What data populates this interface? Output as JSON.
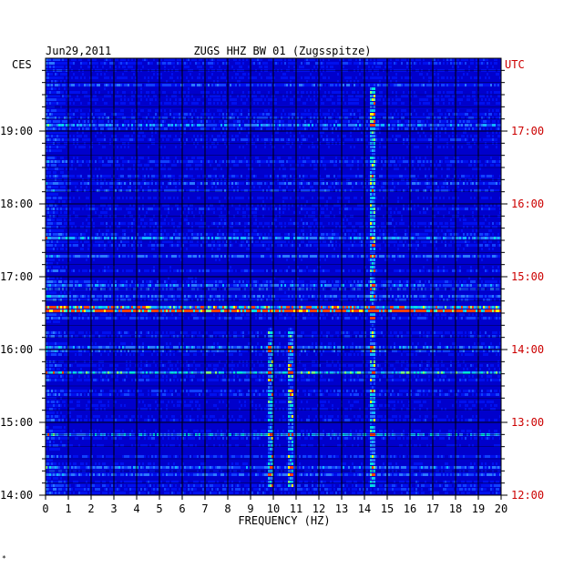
{
  "chart_data": {
    "type": "heatmap",
    "date": "Jun29,2011",
    "title": "ZUGS HHZ BW 01 (Zugsspitze)",
    "xlabel": "FREQUENCY (HZ)",
    "left_axis_label": "CES",
    "right_axis_label": "UTC",
    "x_ticks": [
      "0",
      "1",
      "2",
      "3",
      "4",
      "5",
      "6",
      "7",
      "8",
      "9",
      "10",
      "11",
      "12",
      "13",
      "14",
      "15",
      "16",
      "17",
      "18",
      "19",
      "20"
    ],
    "xlim": [
      0,
      20
    ],
    "left_time_ticks": [
      {
        "label": "19:00",
        "hour": 19
      },
      {
        "label": "18:00",
        "hour": 18
      },
      {
        "label": "17:00",
        "hour": 17
      },
      {
        "label": "16:00",
        "hour": 16
      },
      {
        "label": "15:00",
        "hour": 15
      },
      {
        "label": "14:00",
        "hour": 14
      }
    ],
    "right_time_ticks": [
      {
        "label": "17:00",
        "hour": 17
      },
      {
        "label": "16:00",
        "hour": 16
      },
      {
        "label": "15:00",
        "hour": 15
      },
      {
        "label": "14:00",
        "hour": 14
      },
      {
        "label": "13:00",
        "hour": 13
      },
      {
        "label": "12:00",
        "hour": 12
      }
    ],
    "time_range_local": [
      14.0,
      19.9
    ],
    "grid": true,
    "colors": {
      "background": "#0000cc",
      "low": "#0000aa",
      "mid": "#2060ff",
      "high": "#00e0e0",
      "peak": "#ffff00",
      "utc_label": "#cc0000"
    },
    "notable_features": [
      {
        "type": "horizontal_band",
        "time": 16.55,
        "intensity": "strong"
      },
      {
        "type": "horizontal_band",
        "time": 15.68,
        "intensity": "medium"
      },
      {
        "type": "horizontal_band",
        "time": 17.55,
        "intensity": "medium"
      },
      {
        "type": "vertical_line",
        "freq_hz": 9.8,
        "time_from": 14.1,
        "time_to": 16.3
      },
      {
        "type": "vertical_line",
        "freq_hz": 10.7,
        "time_from": 14.1,
        "time_to": 16.3
      },
      {
        "type": "vertical_line",
        "freq_hz": 14.3,
        "time_from": 14.1,
        "time_to": 19.6
      }
    ]
  },
  "footer_mark": "*"
}
